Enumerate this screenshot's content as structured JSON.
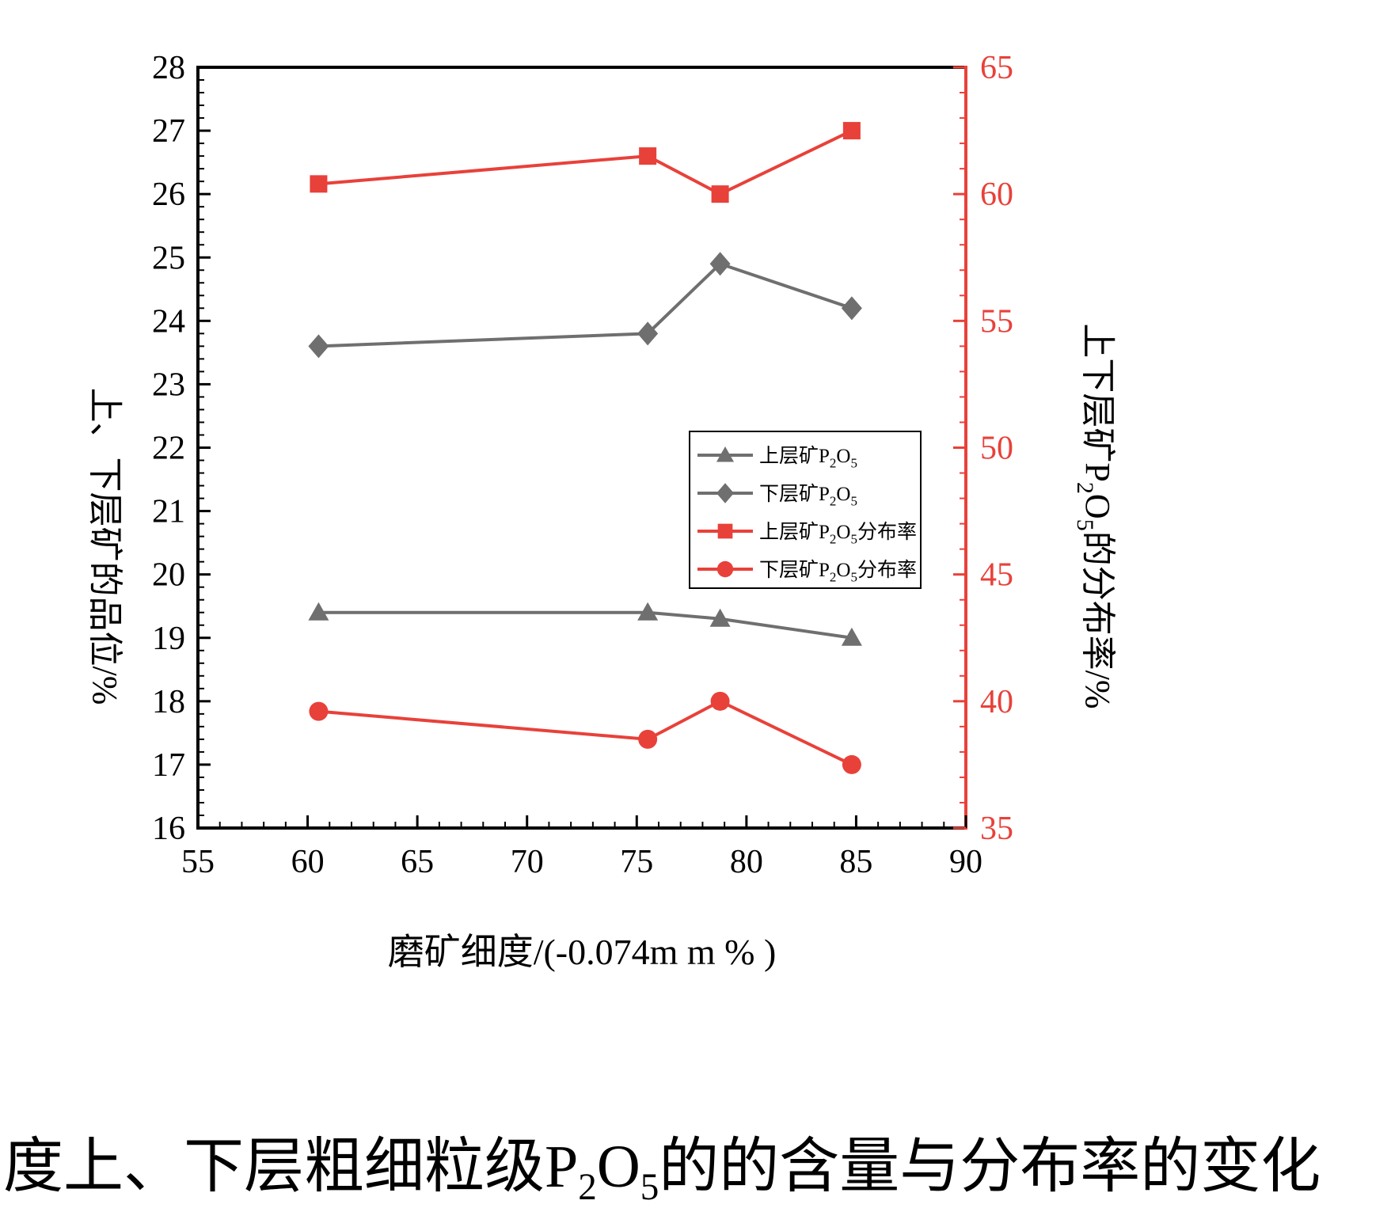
{
  "chart_data": {
    "type": "line",
    "title": "",
    "xlabel": "磨矿细度/(-0.074m m % )",
    "ylabel_left": "上、下层矿的品位/%",
    "ylabel_right": "上下层矿P2O5的分布率/%",
    "xlim": [
      55,
      90
    ],
    "xticks": [
      55,
      60,
      65,
      70,
      75,
      80,
      85,
      90
    ],
    "x_minor_step": 1,
    "ylim_left": [
      16,
      28
    ],
    "yticks_left": [
      16,
      17,
      18,
      19,
      20,
      21,
      22,
      23,
      24,
      25,
      26,
      27,
      28
    ],
    "y_left_minor_step": 0.2,
    "ylim_right": [
      35,
      65
    ],
    "yticks_right": [
      35,
      40,
      45,
      50,
      55,
      60,
      65
    ],
    "y_right_minor_step": 1,
    "grid": false,
    "legend_position": "inside-right-middle",
    "axis_color": "#000000",
    "right_axis_color": "#e8413a",
    "x": [
      60.5,
      75.5,
      78.8,
      84.8
    ],
    "series": [
      {
        "name": "上层矿P2O5",
        "axis": "left",
        "marker": "triangle",
        "color": "#6f6f6f",
        "values": [
          19.4,
          19.4,
          19.3,
          19.0
        ]
      },
      {
        "name": "下层矿P2O5",
        "axis": "left",
        "marker": "diamond",
        "color": "#6f6f6f",
        "values": [
          23.6,
          23.8,
          24.9,
          24.2
        ]
      },
      {
        "name": "上层矿P2O5分布率",
        "axis": "right",
        "marker": "square",
        "color": "#e8413a",
        "values": [
          60.4,
          61.5,
          60.0,
          62.5
        ]
      },
      {
        "name": "下层矿P2O5分布率",
        "axis": "right",
        "marker": "circle",
        "color": "#e8413a",
        "values": [
          39.6,
          38.5,
          40.0,
          37.5
        ]
      }
    ]
  },
  "caption": {
    "text": "度上、下层粗细粒级P2O5的的含量与分布率的变化"
  }
}
